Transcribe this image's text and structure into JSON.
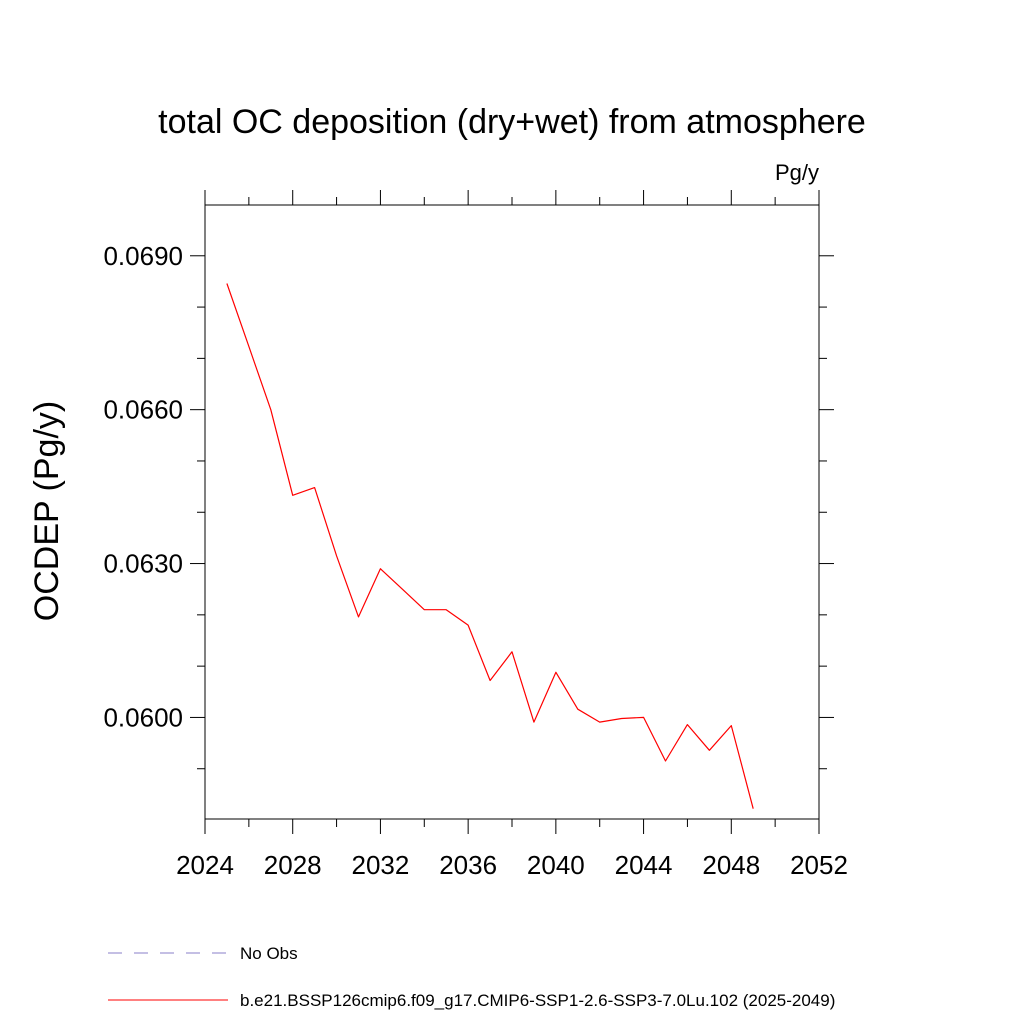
{
  "chart_data": {
    "type": "line",
    "title": "total OC deposition (dry+wet) from atmosphere",
    "units_label": "Pg/y",
    "ylabel": "OCDEP  (Pg/y)",
    "xlabel": "",
    "xlim": [
      2024,
      2052
    ],
    "ylim": [
      0.05802,
      0.06999
    ],
    "x_ticks": [
      2024,
      2028,
      2032,
      2036,
      2040,
      2044,
      2048,
      2052
    ],
    "x_tick_labels": [
      "2024",
      "2028",
      "2032",
      "2036",
      "2040",
      "2044",
      "2048",
      "2052"
    ],
    "y_ticks": [
      0.06,
      0.063,
      0.066,
      0.069
    ],
    "y_tick_labels": [
      "0.0600",
      "0.0630",
      "0.0660",
      "0.0690"
    ],
    "grid": false,
    "legend_position": "bottom",
    "series": [
      {
        "name": "b.e21.BSSP126cmip6.f09_g17.CMIP6-SSP1-2.6-SSP3-7.0Lu.102 (2025-2049)",
        "color": "#ff0000",
        "style": "solid",
        "x": [
          2025,
          2026,
          2027,
          2028,
          2029,
          2030,
          2031,
          2032,
          2033,
          2034,
          2035,
          2036,
          2037,
          2038,
          2039,
          2040,
          2041,
          2042,
          2043,
          2044,
          2045,
          2046,
          2047,
          2048,
          2049
        ],
        "y": [
          0.06846,
          0.06723,
          0.066,
          0.06433,
          0.06448,
          0.06315,
          0.06196,
          0.0629,
          0.0625,
          0.0621,
          0.0621,
          0.0618,
          0.06072,
          0.06128,
          0.05991,
          0.06088,
          0.06016,
          0.05991,
          0.05998,
          0.06,
          0.05915,
          0.05986,
          0.05936,
          0.05984,
          0.05822
        ]
      }
    ],
    "legend": [
      {
        "label": "No Obs",
        "color": "#8a7fc8",
        "style": "dashed"
      },
      {
        "label": "b.e21.BSSP126cmip6.f09_g17.CMIP6-SSP1-2.6-SSP3-7.0Lu.102 (2025-2049)",
        "color": "#ff0000",
        "style": "solid"
      }
    ]
  }
}
